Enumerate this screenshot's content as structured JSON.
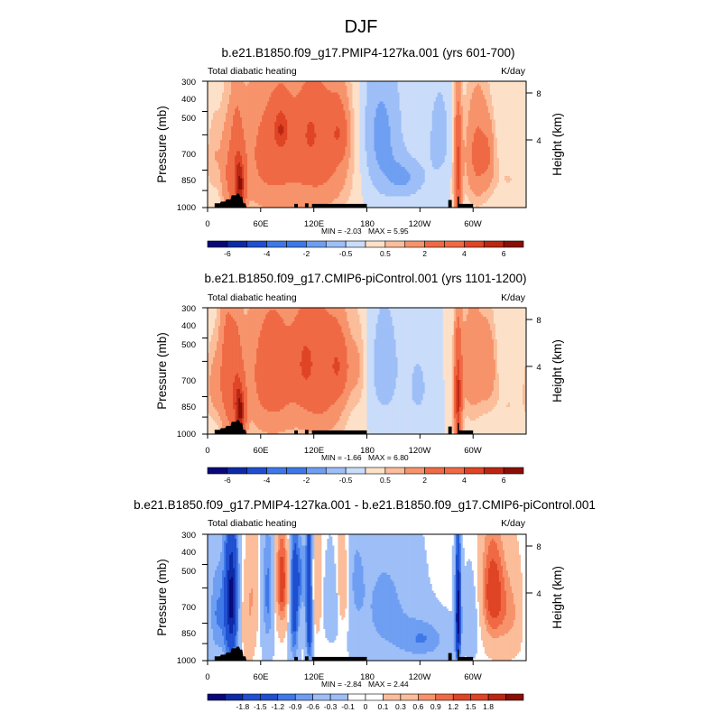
{
  "figure_title": "DJF",
  "chart_data": [
    {
      "type": "heatmap",
      "title": "b.e21.B1850.f09_g17.PMIP4-127ka.001 (yrs 601-700)",
      "variable": "Total diabatic heating",
      "units": "K/day",
      "ylabel": "Pressure (mb)",
      "ylabel_right": "Height (km)",
      "x_ticks": [
        "0",
        "60E",
        "120E",
        "180",
        "120W",
        "60W"
      ],
      "x_tick_lon": [
        0,
        60,
        120,
        180,
        240,
        300
      ],
      "xlim": [
        0,
        360
      ],
      "y_ticks": [
        "300",
        "400",
        "500",
        "700",
        "850",
        "1000"
      ],
      "y_tick_values": [
        300,
        400,
        500,
        700,
        850,
        1000
      ],
      "ylim": [
        1000,
        300
      ],
      "height_ticks": [
        "8",
        "4"
      ],
      "height_values_km": [
        8,
        4
      ],
      "min_label": "MIN = -2.03",
      "max_label": "MAX = 5.95",
      "colorbar_ticks": [
        "-6",
        "-4",
        "-2",
        "-0.5",
        "0.5",
        "2",
        "4",
        "6"
      ],
      "colorbar_tick_values": [
        -6,
        -4,
        -2,
        -0.5,
        0.5,
        2,
        4,
        6
      ],
      "levels": [
        -6,
        -5,
        -4,
        -3,
        -2,
        -1,
        -0.5,
        0,
        0.5,
        1,
        2,
        3,
        4,
        5,
        6
      ],
      "features": [
        {
          "lon": 8,
          "p": 600,
          "w": 6,
          "h": 160,
          "v": 0.8
        },
        {
          "lon": 22,
          "p": 750,
          "w": 5,
          "h": 250,
          "v": 1.4
        },
        {
          "lon": 33,
          "p": 720,
          "w": 5,
          "h": 260,
          "v": 3.0
        },
        {
          "lon": 38,
          "p": 820,
          "w": 4,
          "h": 140,
          "v": 3.5
        },
        {
          "lon": 70,
          "p": 600,
          "w": 26,
          "h": 300,
          "v": 2.4
        },
        {
          "lon": 83,
          "p": 470,
          "w": 7,
          "h": 80,
          "v": 2.8
        },
        {
          "lon": 128,
          "p": 560,
          "w": 24,
          "h": 300,
          "v": 2.6
        },
        {
          "lon": 116,
          "p": 490,
          "w": 8,
          "h": 95,
          "v": 1.6
        },
        {
          "lon": 148,
          "p": 490,
          "w": 7,
          "h": 90,
          "v": 2.3
        },
        {
          "lon": 195,
          "p": 500,
          "w": 18,
          "h": 260,
          "v": -1.2
        },
        {
          "lon": 225,
          "p": 760,
          "w": 16,
          "h": 110,
          "v": -0.9
        },
        {
          "lon": 262,
          "p": 500,
          "w": 11,
          "h": 200,
          "v": -0.7
        },
        {
          "lon": 283,
          "p": 700,
          "w": 3,
          "h": 260,
          "v": 4.5
        },
        {
          "lon": 305,
          "p": 600,
          "w": 10,
          "h": 220,
          "v": 2.4
        },
        {
          "lon": 318,
          "p": 600,
          "w": 5,
          "h": 130,
          "v": 1.0
        },
        {
          "lon": 340,
          "p": 760,
          "w": 14,
          "h": 140,
          "v": 0.5
        }
      ]
    },
    {
      "type": "heatmap",
      "title": "b.e21.B1850.f09_g17.CMIP6-piControl.001 (yrs 1101-1200)",
      "variable": "Total diabatic heating",
      "units": "K/day",
      "ylabel": "Pressure (mb)",
      "ylabel_right": "Height (km)",
      "x_ticks": [
        "0",
        "60E",
        "120E",
        "180",
        "120W",
        "60W"
      ],
      "x_tick_lon": [
        0,
        60,
        120,
        180,
        240,
        300
      ],
      "xlim": [
        0,
        360
      ],
      "y_ticks": [
        "300",
        "400",
        "500",
        "700",
        "850",
        "1000"
      ],
      "y_tick_values": [
        300,
        400,
        500,
        700,
        850,
        1000
      ],
      "ylim": [
        1000,
        300
      ],
      "height_ticks": [
        "8",
        "4"
      ],
      "height_values_km": [
        8,
        4
      ],
      "min_label": "MIN = -1.66",
      "max_label": "MAX = 6.80",
      "colorbar_ticks": [
        "-6",
        "-4",
        "-2",
        "-0.5",
        "0.5",
        "2",
        "4",
        "6"
      ],
      "colorbar_tick_values": [
        -6,
        -4,
        -2,
        -0.5,
        0.5,
        2,
        4,
        6
      ],
      "levels": [
        -6,
        -5,
        -4,
        -3,
        -2,
        -1,
        -0.5,
        0,
        0.5,
        1,
        2,
        3,
        4,
        5,
        6
      ],
      "features": [
        {
          "lon": 8,
          "p": 620,
          "w": 7,
          "h": 170,
          "v": 1.2
        },
        {
          "lon": 22,
          "p": 560,
          "w": 6,
          "h": 300,
          "v": 2.4
        },
        {
          "lon": 33,
          "p": 720,
          "w": 5,
          "h": 260,
          "v": 3.2
        },
        {
          "lon": 38,
          "p": 820,
          "w": 4,
          "h": 140,
          "v": 3.8
        },
        {
          "lon": 72,
          "p": 560,
          "w": 22,
          "h": 300,
          "v": 2.8
        },
        {
          "lon": 110,
          "p": 500,
          "w": 8,
          "h": 120,
          "v": 2.0
        },
        {
          "lon": 128,
          "p": 560,
          "w": 20,
          "h": 300,
          "v": 2.8
        },
        {
          "lon": 148,
          "p": 520,
          "w": 8,
          "h": 110,
          "v": 2.4
        },
        {
          "lon": 170,
          "p": 520,
          "w": 6,
          "h": 150,
          "v": 0.8
        },
        {
          "lon": 200,
          "p": 520,
          "w": 12,
          "h": 220,
          "v": -0.9
        },
        {
          "lon": 238,
          "p": 640,
          "w": 11,
          "h": 200,
          "v": -0.6
        },
        {
          "lon": 283,
          "p": 720,
          "w": 3,
          "h": 260,
          "v": 5.0
        },
        {
          "lon": 300,
          "p": 520,
          "w": 11,
          "h": 220,
          "v": 1.8
        },
        {
          "lon": 318,
          "p": 520,
          "w": 6,
          "h": 140,
          "v": 1.4
        },
        {
          "lon": 340,
          "p": 760,
          "w": 14,
          "h": 140,
          "v": 0.5
        }
      ]
    },
    {
      "type": "heatmap",
      "title": "b.e21.B1850.f09_g17.PMIP4-127ka.001 - b.e21.B1850.f09_g17.CMIP6-piControl.001",
      "variable": "Total diabatic heating",
      "units": "K/day",
      "ylabel": "Pressure (mb)",
      "ylabel_right": "Height (km)",
      "x_ticks": [
        "0",
        "60E",
        "120E",
        "180",
        "120W",
        "60W"
      ],
      "x_tick_lon": [
        0,
        60,
        120,
        180,
        240,
        300
      ],
      "xlim": [
        0,
        360
      ],
      "y_ticks": [
        "300",
        "400",
        "500",
        "700",
        "850",
        "1000"
      ],
      "y_tick_values": [
        300,
        400,
        500,
        700,
        850,
        1000
      ],
      "ylim": [
        1000,
        300
      ],
      "height_ticks": [
        "8",
        "4"
      ],
      "height_values_km": [
        8,
        4
      ],
      "min_label": "MIN = -2.84",
      "max_label": "MAX = 2.44",
      "colorbar_ticks": [
        "-1.8",
        "-1.5",
        "-1.2",
        "-0.9",
        "-0.6",
        "-0.3",
        "-0.1",
        "0",
        "0.1",
        "0.3",
        "0.6",
        "0.9",
        "1.2",
        "1.5",
        "1.8"
      ],
      "colorbar_tick_values": [
        -1.8,
        -1.5,
        -1.2,
        -0.9,
        -0.6,
        -0.3,
        -0.1,
        0,
        0.1,
        0.3,
        0.6,
        0.9,
        1.2,
        1.5,
        1.8
      ],
      "levels": [
        -2.1,
        -1.8,
        -1.5,
        -1.2,
        -0.9,
        -0.6,
        -0.3,
        -0.1,
        0,
        0.1,
        0.3,
        0.6,
        0.9,
        1.2,
        1.5,
        1.8,
        2.1
      ],
      "features": [
        {
          "lon": 10,
          "p": 640,
          "w": 7,
          "h": 240,
          "v": -0.9
        },
        {
          "lon": 27,
          "p": 560,
          "w": 6,
          "h": 320,
          "v": -2.2
        },
        {
          "lon": 45,
          "p": 680,
          "w": 6,
          "h": 200,
          "v": 0.5
        },
        {
          "lon": 52,
          "p": 480,
          "w": 5,
          "h": 160,
          "v": 0.4
        },
        {
          "lon": 68,
          "p": 520,
          "w": 5,
          "h": 260,
          "v": -1.0
        },
        {
          "lon": 84,
          "p": 470,
          "w": 5,
          "h": 160,
          "v": 1.5
        },
        {
          "lon": 98,
          "p": 560,
          "w": 4,
          "h": 320,
          "v": -1.5
        },
        {
          "lon": 106,
          "p": 450,
          "w": 4,
          "h": 120,
          "v": -0.8
        },
        {
          "lon": 115,
          "p": 560,
          "w": 3,
          "h": 320,
          "v": -2.0
        },
        {
          "lon": 122,
          "p": 500,
          "w": 6,
          "h": 160,
          "v": 0.6
        },
        {
          "lon": 140,
          "p": 560,
          "w": 7,
          "h": 140,
          "v": -0.6
        },
        {
          "lon": 152,
          "p": 500,
          "w": 6,
          "h": 160,
          "v": 0.6
        },
        {
          "lon": 168,
          "p": 460,
          "w": 6,
          "h": 140,
          "v": -0.5
        },
        {
          "lon": 200,
          "p": 600,
          "w": 26,
          "h": 300,
          "v": -0.7
        },
        {
          "lon": 246,
          "p": 820,
          "w": 20,
          "h": 120,
          "v": -0.8
        },
        {
          "lon": 283,
          "p": 620,
          "w": 2.5,
          "h": 300,
          "v": -2.2
        },
        {
          "lon": 300,
          "p": 650,
          "w": 8,
          "h": 200,
          "v": -0.4
        },
        {
          "lon": 322,
          "p": 520,
          "w": 10,
          "h": 200,
          "v": 1.5
        },
        {
          "lon": 343,
          "p": 640,
          "w": 10,
          "h": 180,
          "v": 0.6
        }
      ]
    }
  ],
  "colors": {
    "blues": [
      "#08087a",
      "#0d2aa6",
      "#1f4fd0",
      "#3e78e8",
      "#6e9ef2",
      "#9dbef7",
      "#c9dcfa"
    ],
    "white": "#ffffff",
    "reds": [
      "#fde0c8",
      "#fbbd9a",
      "#f7936b",
      "#ef6a44",
      "#df4425",
      "#bb2613",
      "#8a0e05"
    ],
    "topography": "#000000"
  }
}
